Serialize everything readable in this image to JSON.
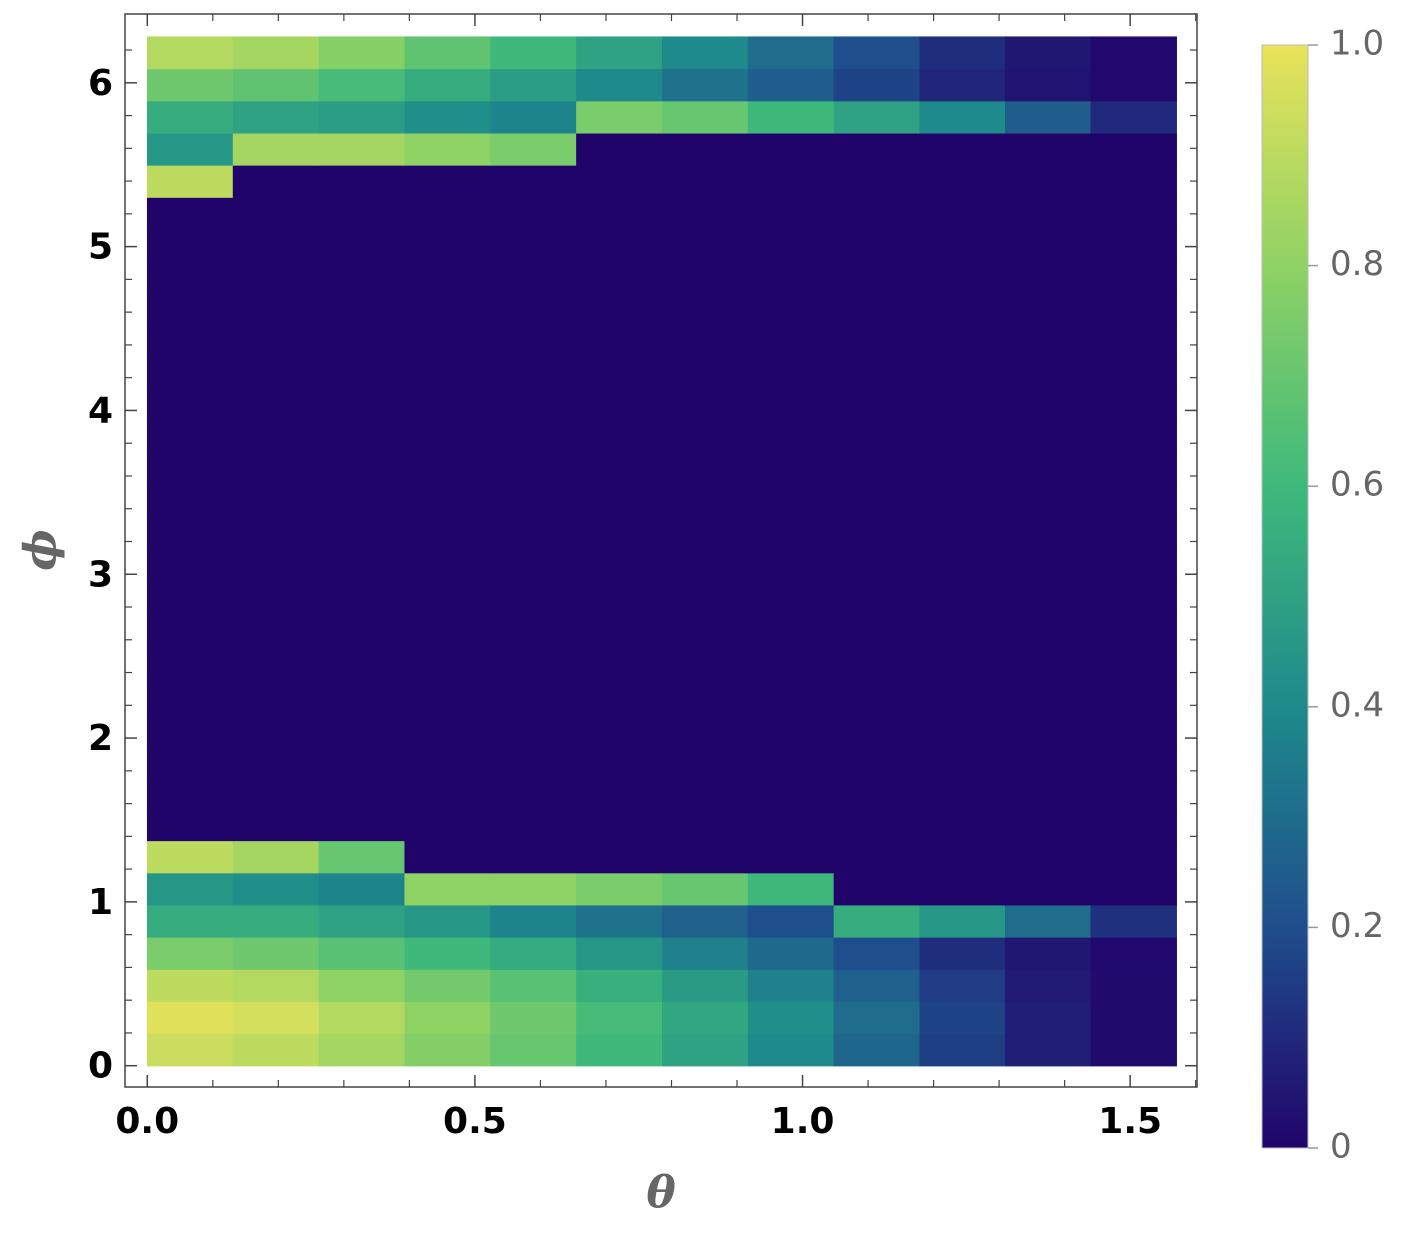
{
  "chart_data": {
    "type": "heatmap",
    "x_label": "θ",
    "y_label": "ϕ",
    "x": [
      0.065,
      0.196,
      0.327,
      0.458,
      0.589,
      0.72,
      0.851,
      0.982,
      1.113,
      1.244,
      1.374,
      1.505
    ],
    "y": [
      0.098,
      0.295,
      0.491,
      0.687,
      0.884,
      1.08,
      1.276,
      1.473,
      1.669,
      1.865,
      2.062,
      2.258,
      2.454,
      2.651,
      2.847,
      3.043,
      3.24,
      3.436,
      3.633,
      3.829,
      4.025,
      4.222,
      4.418,
      4.614,
      4.811,
      5.007,
      5.203,
      5.4,
      5.596,
      5.792,
      5.989,
      6.185
    ],
    "z": [
      [
        0.93,
        0.9,
        0.85,
        0.77,
        0.7,
        0.6,
        0.5,
        0.4,
        0.28,
        0.16,
        0.07,
        0.02
      ],
      [
        0.98,
        0.95,
        0.88,
        0.8,
        0.72,
        0.62,
        0.52,
        0.42,
        0.3,
        0.17,
        0.07,
        0.02
      ],
      [
        0.9,
        0.88,
        0.8,
        0.73,
        0.66,
        0.56,
        0.47,
        0.37,
        0.26,
        0.15,
        0.06,
        0.02
      ],
      [
        0.75,
        0.72,
        0.66,
        0.6,
        0.54,
        0.45,
        0.37,
        0.29,
        0.2,
        0.11,
        0.05,
        0.01
      ],
      [
        0.55,
        0.55,
        0.5,
        0.45,
        0.38,
        0.32,
        0.26,
        0.2,
        0.55,
        0.45,
        0.3,
        0.12
      ],
      [
        0.45,
        0.42,
        0.38,
        0.8,
        0.8,
        0.75,
        0.7,
        0.6,
        0,
        0,
        0,
        0
      ],
      [
        0.9,
        0.85,
        0.7,
        0,
        0,
        0,
        0,
        0,
        0,
        0,
        0,
        0
      ],
      [
        0,
        0,
        0,
        0,
        0,
        0,
        0,
        0,
        0,
        0,
        0,
        0
      ],
      [
        0,
        0,
        0,
        0,
        0,
        0,
        0,
        0,
        0,
        0,
        0,
        0
      ],
      [
        0,
        0,
        0,
        0,
        0,
        0,
        0,
        0,
        0,
        0,
        0,
        0
      ],
      [
        0,
        0,
        0,
        0,
        0,
        0,
        0,
        0,
        0,
        0,
        0,
        0
      ],
      [
        0,
        0,
        0,
        0,
        0,
        0,
        0,
        0,
        0,
        0,
        0,
        0
      ],
      [
        0,
        0,
        0,
        0,
        0,
        0,
        0,
        0,
        0,
        0,
        0,
        0
      ],
      [
        0,
        0,
        0,
        0,
        0,
        0,
        0,
        0,
        0,
        0,
        0,
        0
      ],
      [
        0,
        0,
        0,
        0,
        0,
        0,
        0,
        0,
        0,
        0,
        0,
        0
      ],
      [
        0,
        0,
        0,
        0,
        0,
        0,
        0,
        0,
        0,
        0,
        0,
        0
      ],
      [
        0,
        0,
        0,
        0,
        0,
        0,
        0,
        0,
        0,
        0,
        0,
        0
      ],
      [
        0,
        0,
        0,
        0,
        0,
        0,
        0,
        0,
        0,
        0,
        0,
        0
      ],
      [
        0,
        0,
        0,
        0,
        0,
        0,
        0,
        0,
        0,
        0,
        0,
        0
      ],
      [
        0,
        0,
        0,
        0,
        0,
        0,
        0,
        0,
        0,
        0,
        0,
        0
      ],
      [
        0,
        0,
        0,
        0,
        0,
        0,
        0,
        0,
        0,
        0,
        0,
        0
      ],
      [
        0,
        0,
        0,
        0,
        0,
        0,
        0,
        0,
        0,
        0,
        0,
        0
      ],
      [
        0,
        0,
        0,
        0,
        0,
        0,
        0,
        0,
        0,
        0,
        0,
        0
      ],
      [
        0,
        0,
        0,
        0,
        0,
        0,
        0,
        0,
        0,
        0,
        0,
        0
      ],
      [
        0,
        0,
        0,
        0,
        0,
        0,
        0,
        0,
        0,
        0,
        0,
        0
      ],
      [
        0,
        0,
        0,
        0,
        0,
        0,
        0,
        0,
        0,
        0,
        0,
        0
      ],
      [
        0,
        0,
        0,
        0,
        0,
        0,
        0,
        0,
        0,
        0,
        0,
        0
      ],
      [
        0.9,
        0,
        0,
        0,
        0,
        0,
        0,
        0,
        0,
        0,
        0,
        0
      ],
      [
        0.45,
        0.85,
        0.85,
        0.8,
        0.75,
        0,
        0,
        0,
        0,
        0,
        0,
        0
      ],
      [
        0.55,
        0.5,
        0.48,
        0.42,
        0.38,
        0.75,
        0.7,
        0.6,
        0.5,
        0.4,
        0.25,
        0.1
      ],
      [
        0.72,
        0.68,
        0.62,
        0.55,
        0.48,
        0.4,
        0.32,
        0.25,
        0.17,
        0.09,
        0.04,
        0.01
      ],
      [
        0.88,
        0.85,
        0.78,
        0.68,
        0.6,
        0.5,
        0.4,
        0.3,
        0.2,
        0.11,
        0.05,
        0.01
      ]
    ],
    "xlim": [
      -0.034,
      1.602
    ],
    "ylim": [
      -0.13,
      6.42
    ],
    "xticks": [
      {
        "value": 0,
        "label": "0.0"
      },
      0.5,
      {
        "value": 1,
        "label": "1.0"
      },
      1.5
    ],
    "yticks": [
      0,
      1,
      2,
      3,
      4,
      5,
      6
    ],
    "xminorticks": [
      0.1,
      0.2,
      0.3,
      0.4,
      0.6,
      0.7,
      0.8,
      0.9,
      1.1,
      1.2,
      1.3,
      1.4,
      1.6
    ],
    "yminorticks": [
      0.2,
      0.4,
      0.6,
      0.8,
      1.2,
      1.4,
      1.6,
      1.8,
      2.2,
      2.4,
      2.6,
      2.8,
      3.2,
      3.4,
      3.6,
      3.8,
      4.2,
      4.4,
      4.6,
      4.8,
      5.2,
      5.4,
      5.6,
      5.8,
      6.2
    ],
    "zlim": [
      0,
      1
    ],
    "zticks": [
      0,
      0.2,
      0.4,
      0.6,
      0.8,
      {
        "value": 1,
        "label": "1.0"
      }
    ],
    "colorscale": [
      "#20046a",
      "#1f4e8c",
      "#1e8a8b",
      "#3fb97b",
      "#8fd264",
      "#e9e35a"
    ]
  }
}
